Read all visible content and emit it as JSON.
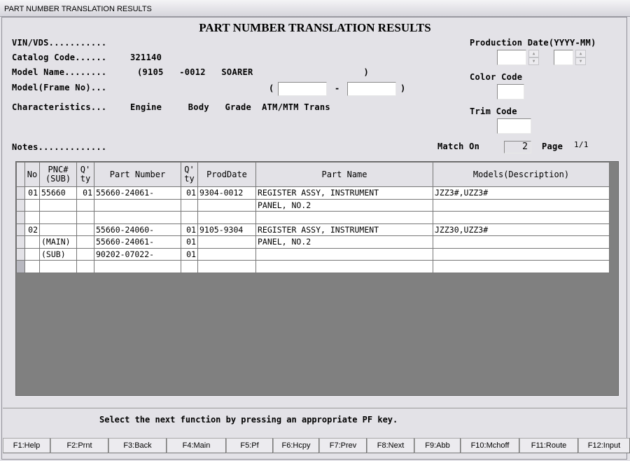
{
  "window_title": "PART NUMBER TRANSLATION RESULTS",
  "heading": "PART NUMBER TRANSLATION RESULTS",
  "fields": {
    "vin_label": "VIN/VDS...........",
    "catalog_label": "Catalog Code......",
    "catalog_value": "321140",
    "model_name_label": "Model Name........",
    "model_name_value": "(9105   -0012   SOARER                     )",
    "frame_label": "Model(Frame No)...",
    "frame_open": "(",
    "frame_dash": "-",
    "frame_close": ")",
    "char_label": "Characteristics...",
    "char_cols": "Engine     Body   Grade  ATM/MTM Trans",
    "notes_label": "Notes.............",
    "prod_date_label": "Production Date(YYYY-MM)",
    "color_label": "Color Code",
    "trim_label": "Trim Code",
    "match_label": "Match On",
    "match_value": "2",
    "page_label": "Page",
    "page_value": "1/1"
  },
  "table": {
    "headers": [
      "No",
      "PNC#\n(SUB)",
      "Q'\nty",
      "Part Number",
      "Q'\nty",
      "ProdDate",
      "Part Name",
      "Models(Description)"
    ],
    "rows": [
      [
        "01",
        "55660",
        "01",
        "55660-24061-",
        "01",
        "9304-0012",
        "REGISTER ASSY, INSTRUMENT",
        "JZZ3#,UZZ3#"
      ],
      [
        "",
        "",
        "",
        "",
        "",
        "",
        "PANEL, NO.2",
        ""
      ],
      [
        "",
        "",
        "",
        "",
        "",
        "",
        "",
        ""
      ],
      [
        "02",
        "",
        "",
        "55660-24060-",
        "01",
        "9105-9304",
        "REGISTER ASSY, INSTRUMENT",
        "JZZ30,UZZ3#"
      ],
      [
        "",
        "(MAIN)",
        "",
        "55660-24061-",
        "01",
        "",
        "PANEL, NO.2",
        ""
      ],
      [
        "",
        "(SUB)",
        "",
        "90202-07022-",
        "01",
        "",
        "",
        ""
      ],
      [
        "",
        "",
        "",
        "",
        "",
        "",
        "",
        ""
      ]
    ]
  },
  "status_message": "Select the next function by pressing an appropriate PF key.",
  "function_keys": [
    "F1:Help",
    "F2:Prnt",
    "F3:Back",
    "F4:Main",
    "F5:Pf",
    "F6:Hcpy",
    "F7:Prev",
    "F8:Next",
    "F9:Abb",
    "F10:Mchoff",
    "F11:Route",
    "F12:Input"
  ]
}
